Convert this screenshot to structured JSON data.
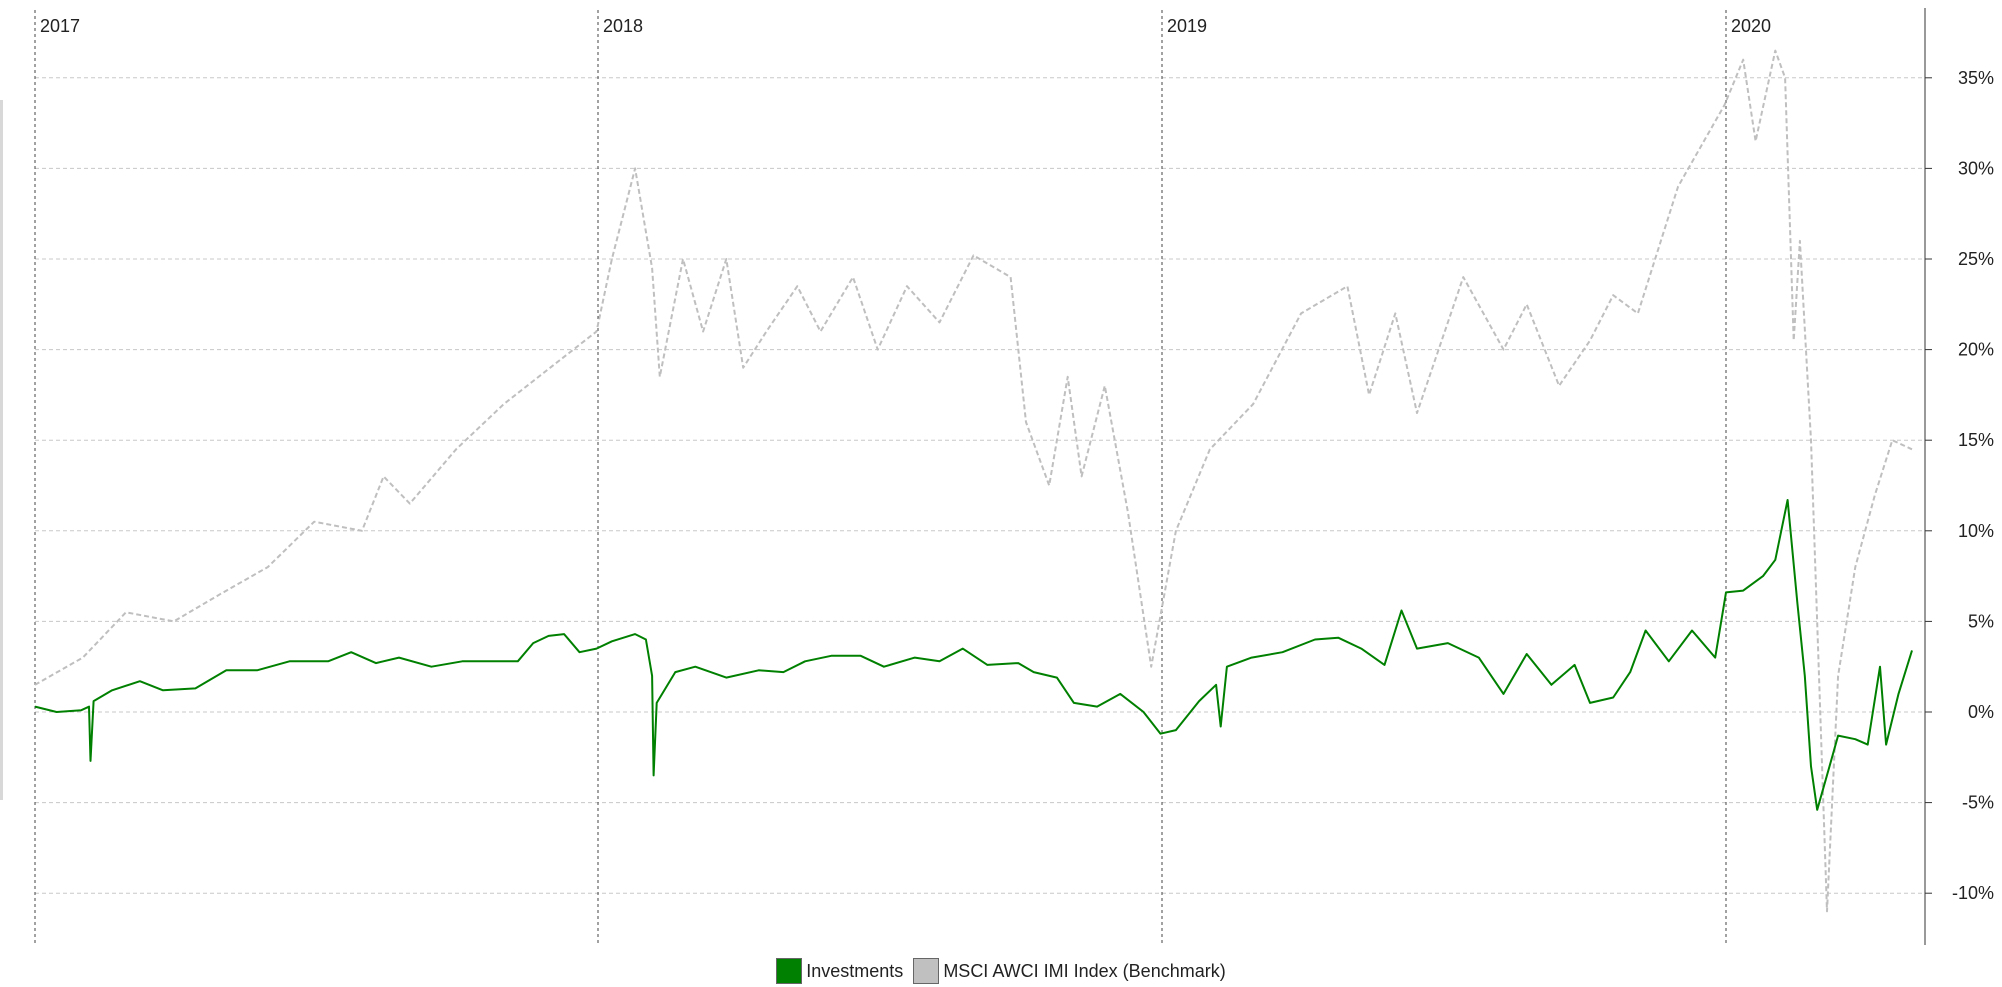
{
  "chart_data": {
    "type": "line",
    "title": "",
    "xlabel": "",
    "ylabel": "",
    "y_unit": "%",
    "y_ticks": [
      35,
      30,
      25,
      20,
      15,
      10,
      5,
      0,
      -5,
      -10
    ],
    "y_tick_labels": [
      "35%",
      "30%",
      "25%",
      "20%",
      "15%",
      "10%",
      "5%",
      "0%",
      "-5%",
      "-10%"
    ],
    "ylim": [
      -12,
      38
    ],
    "xlim": [
      "2017-01-01",
      "2020-05-31"
    ],
    "year_markers": [
      {
        "label": "2017",
        "date": "2017-01-01"
      },
      {
        "label": "2018",
        "date": "2018-01-01"
      },
      {
        "label": "2019",
        "date": "2019-01-01"
      },
      {
        "label": "2020",
        "date": "2020-01-01"
      }
    ],
    "grid": true,
    "legend_position": "bottom-center",
    "series": [
      {
        "name": "Investments",
        "color": "#008000",
        "style": "solid",
        "points": [
          [
            "2017-01-01",
            0.3
          ],
          [
            "2017-01-15",
            0.0
          ],
          [
            "2017-01-31",
            0.1
          ],
          [
            "2017-02-05",
            0.3
          ],
          [
            "2017-02-06",
            -2.7
          ],
          [
            "2017-02-08",
            0.6
          ],
          [
            "2017-02-20",
            1.2
          ],
          [
            "2017-03-10",
            1.7
          ],
          [
            "2017-03-25",
            1.2
          ],
          [
            "2017-04-15",
            1.3
          ],
          [
            "2017-05-05",
            2.3
          ],
          [
            "2017-05-25",
            2.3
          ],
          [
            "2017-06-15",
            2.8
          ],
          [
            "2017-07-10",
            2.8
          ],
          [
            "2017-07-25",
            3.3
          ],
          [
            "2017-08-10",
            2.7
          ],
          [
            "2017-08-25",
            3.0
          ],
          [
            "2017-09-15",
            2.5
          ],
          [
            "2017-10-05",
            2.8
          ],
          [
            "2017-10-25",
            2.8
          ],
          [
            "2017-11-10",
            2.8
          ],
          [
            "2017-11-20",
            3.8
          ],
          [
            "2017-11-30",
            4.2
          ],
          [
            "2017-12-10",
            4.3
          ],
          [
            "2017-12-20",
            3.3
          ],
          [
            "2017-12-31",
            3.5
          ],
          [
            "2018-01-10",
            3.9
          ],
          [
            "2018-01-25",
            4.3
          ],
          [
            "2018-02-01",
            4.0
          ],
          [
            "2018-02-05",
            2.0
          ],
          [
            "2018-02-06",
            -3.5
          ],
          [
            "2018-02-08",
            0.5
          ],
          [
            "2018-02-20",
            2.2
          ],
          [
            "2018-03-05",
            2.5
          ],
          [
            "2018-03-25",
            1.9
          ],
          [
            "2018-04-15",
            2.3
          ],
          [
            "2018-05-01",
            2.2
          ],
          [
            "2018-05-15",
            2.8
          ],
          [
            "2018-06-01",
            3.1
          ],
          [
            "2018-06-20",
            3.1
          ],
          [
            "2018-07-05",
            2.5
          ],
          [
            "2018-07-25",
            3.0
          ],
          [
            "2018-08-10",
            2.8
          ],
          [
            "2018-08-25",
            3.5
          ],
          [
            "2018-09-10",
            2.6
          ],
          [
            "2018-09-30",
            2.7
          ],
          [
            "2018-10-10",
            2.2
          ],
          [
            "2018-10-25",
            1.9
          ],
          [
            "2018-11-05",
            0.5
          ],
          [
            "2018-11-20",
            0.3
          ],
          [
            "2018-12-05",
            1.0
          ],
          [
            "2018-12-20",
            0.0
          ],
          [
            "2018-12-31",
            -1.2
          ],
          [
            "2019-01-10",
            -1.0
          ],
          [
            "2019-01-25",
            0.6
          ],
          [
            "2019-02-05",
            1.5
          ],
          [
            "2019-02-08",
            -0.8
          ],
          [
            "2019-02-12",
            2.5
          ],
          [
            "2019-02-28",
            3.0
          ],
          [
            "2019-03-20",
            3.3
          ],
          [
            "2019-04-10",
            4.0
          ],
          [
            "2019-04-25",
            4.1
          ],
          [
            "2019-05-10",
            3.5
          ],
          [
            "2019-05-25",
            2.6
          ],
          [
            "2019-06-05",
            5.6
          ],
          [
            "2019-06-15",
            3.5
          ],
          [
            "2019-07-05",
            3.8
          ],
          [
            "2019-07-25",
            3.0
          ],
          [
            "2019-08-10",
            1.0
          ],
          [
            "2019-08-25",
            3.2
          ],
          [
            "2019-09-10",
            1.5
          ],
          [
            "2019-09-25",
            2.6
          ],
          [
            "2019-10-05",
            0.5
          ],
          [
            "2019-10-20",
            0.8
          ],
          [
            "2019-10-31",
            2.2
          ],
          [
            "2019-11-10",
            4.5
          ],
          [
            "2019-11-25",
            2.8
          ],
          [
            "2019-12-10",
            4.5
          ],
          [
            "2019-12-25",
            3.0
          ],
          [
            "2020-01-01",
            6.6
          ],
          [
            "2020-01-15",
            6.7
          ],
          [
            "2020-01-31",
            7.5
          ],
          [
            "2020-02-10",
            8.4
          ],
          [
            "2020-02-20",
            11.7
          ],
          [
            "2020-02-28",
            6.0
          ],
          [
            "2020-03-05",
            2.0
          ],
          [
            "2020-03-10",
            -3.0
          ],
          [
            "2020-03-15",
            -5.4
          ],
          [
            "2020-03-25",
            -3.0
          ],
          [
            "2020-04-01",
            -1.3
          ],
          [
            "2020-04-15",
            -1.5
          ],
          [
            "2020-04-25",
            -1.8
          ],
          [
            "2020-05-05",
            2.5
          ],
          [
            "2020-05-10",
            -1.8
          ],
          [
            "2020-05-20",
            1.0
          ],
          [
            "2020-05-31",
            3.4
          ]
        ]
      },
      {
        "name": "MSCI AWCI IMI Index (Benchmark)",
        "color": "#bfbfbf",
        "style": "dashed",
        "points": [
          [
            "2017-01-01",
            1.5
          ],
          [
            "2017-02-01",
            3.0
          ],
          [
            "2017-03-01",
            5.5
          ],
          [
            "2017-04-01",
            5.0
          ],
          [
            "2017-05-01",
            6.5
          ],
          [
            "2017-06-01",
            8.0
          ],
          [
            "2017-07-01",
            10.5
          ],
          [
            "2017-08-01",
            10.0
          ],
          [
            "2017-08-15",
            13.0
          ],
          [
            "2017-09-01",
            11.5
          ],
          [
            "2017-10-01",
            14.5
          ],
          [
            "2017-11-01",
            17.0
          ],
          [
            "2017-12-01",
            19.0
          ],
          [
            "2017-12-31",
            21.0
          ],
          [
            "2018-01-10",
            25.0
          ],
          [
            "2018-01-25",
            30.0
          ],
          [
            "2018-02-05",
            24.5
          ],
          [
            "2018-02-10",
            18.5
          ],
          [
            "2018-02-25",
            25.0
          ],
          [
            "2018-03-10",
            21.0
          ],
          [
            "2018-03-25",
            25.0
          ],
          [
            "2018-04-05",
            19.0
          ],
          [
            "2018-04-20",
            21.0
          ],
          [
            "2018-05-10",
            23.5
          ],
          [
            "2018-05-25",
            21.0
          ],
          [
            "2018-06-15",
            24.0
          ],
          [
            "2018-07-01",
            20.0
          ],
          [
            "2018-07-20",
            23.5
          ],
          [
            "2018-08-10",
            21.5
          ],
          [
            "2018-09-01",
            25.2
          ],
          [
            "2018-09-25",
            24.0
          ],
          [
            "2018-10-05",
            16.0
          ],
          [
            "2018-10-20",
            12.5
          ],
          [
            "2018-11-01",
            18.5
          ],
          [
            "2018-11-10",
            13.0
          ],
          [
            "2018-11-25",
            18.0
          ],
          [
            "2018-12-10",
            11.0
          ],
          [
            "2018-12-25",
            2.5
          ],
          [
            "2019-01-10",
            10.0
          ],
          [
            "2019-02-01",
            14.5
          ],
          [
            "2019-03-01",
            17.0
          ],
          [
            "2019-04-01",
            22.0
          ],
          [
            "2019-05-01",
            23.5
          ],
          [
            "2019-05-15",
            17.5
          ],
          [
            "2019-06-01",
            22.0
          ],
          [
            "2019-06-15",
            16.5
          ],
          [
            "2019-07-15",
            24.0
          ],
          [
            "2019-08-10",
            20.0
          ],
          [
            "2019-08-25",
            22.5
          ],
          [
            "2019-09-15",
            18.0
          ],
          [
            "2019-10-05",
            20.5
          ],
          [
            "2019-10-20",
            23.0
          ],
          [
            "2019-11-05",
            22.0
          ],
          [
            "2019-12-01",
            29.0
          ],
          [
            "2019-12-31",
            33.5
          ],
          [
            "2020-01-15",
            36.0
          ],
          [
            "2020-01-25",
            31.5
          ],
          [
            "2020-02-10",
            36.5
          ],
          [
            "2020-02-18",
            35.0
          ],
          [
            "2020-02-25",
            20.5
          ],
          [
            "2020-03-01",
            26.0
          ],
          [
            "2020-03-10",
            15.0
          ],
          [
            "2020-03-23",
            -11.0
          ],
          [
            "2020-04-01",
            2.0
          ],
          [
            "2020-04-15",
            8.0
          ],
          [
            "2020-05-01",
            12.0
          ],
          [
            "2020-05-15",
            15.0
          ],
          [
            "2020-05-31",
            14.5
          ]
        ]
      }
    ]
  },
  "legend": {
    "items": [
      {
        "label": "Investments",
        "color": "#008000"
      },
      {
        "label": "MSCI AWCI IMI Index (Benchmark)",
        "color": "#c0c0c0"
      }
    ]
  }
}
